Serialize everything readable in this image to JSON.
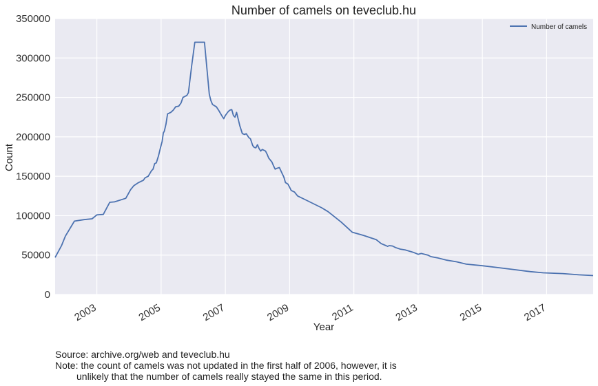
{
  "chart_data": {
    "type": "line",
    "title": "Number of camels on teveclub.hu",
    "xlabel": "Year",
    "ylabel": "Count",
    "ylim": [
      0,
      350000
    ],
    "xlim": [
      2001.7,
      2018.45
    ],
    "yticks": [
      0,
      50000,
      100000,
      150000,
      200000,
      250000,
      300000,
      350000
    ],
    "ytick_labels": [
      "0",
      "50000",
      "100000",
      "150000",
      "200000",
      "250000",
      "300000",
      "350000"
    ],
    "xticks": [
      2003,
      2005,
      2007,
      2009,
      2011,
      2013,
      2015,
      2017
    ],
    "xtick_labels": [
      "2003",
      "2005",
      "2007",
      "2009",
      "2011",
      "2013",
      "2015",
      "2017"
    ],
    "grid": true,
    "legend_position": "top-right",
    "series": [
      {
        "name": "Number of camels",
        "color": "#4c72b0",
        "points": [
          [
            2001.7,
            47000
          ],
          [
            2001.9,
            62000
          ],
          [
            2002.02,
            74000
          ],
          [
            2002.3,
            93000
          ],
          [
            2002.6,
            95000
          ],
          [
            2002.85,
            96000
          ],
          [
            2003.0,
            101000
          ],
          [
            2003.2,
            101500
          ],
          [
            2003.4,
            117000
          ],
          [
            2003.55,
            117500
          ],
          [
            2003.9,
            122000
          ],
          [
            2004.05,
            133000
          ],
          [
            2004.15,
            138000
          ],
          [
            2004.3,
            142000
          ],
          [
            2004.45,
            145000
          ],
          [
            2004.5,
            148000
          ],
          [
            2004.6,
            150000
          ],
          [
            2004.7,
            157000
          ],
          [
            2004.75,
            159000
          ],
          [
            2004.8,
            166000
          ],
          [
            2004.85,
            167000
          ],
          [
            2004.92,
            176000
          ],
          [
            2004.98,
            186000
          ],
          [
            2005.03,
            194000
          ],
          [
            2005.07,
            205000
          ],
          [
            2005.1,
            207000
          ],
          [
            2005.15,
            216000
          ],
          [
            2005.2,
            229000
          ],
          [
            2005.3,
            231000
          ],
          [
            2005.38,
            234000
          ],
          [
            2005.45,
            238000
          ],
          [
            2005.55,
            239000
          ],
          [
            2005.62,
            243000
          ],
          [
            2005.68,
            250000
          ],
          [
            2005.8,
            252500
          ],
          [
            2005.85,
            256000
          ],
          [
            2005.95,
            290000
          ],
          [
            2006.05,
            320000
          ],
          [
            2006.35,
            320000
          ],
          [
            2006.5,
            254000
          ],
          [
            2006.55,
            246000
          ],
          [
            2006.6,
            241000
          ],
          [
            2006.72,
            238000
          ],
          [
            2006.8,
            233000
          ],
          [
            2006.9,
            226000
          ],
          [
            2006.95,
            223000
          ],
          [
            2007.0,
            227000
          ],
          [
            2007.05,
            230000
          ],
          [
            2007.1,
            232500
          ],
          [
            2007.15,
            234000
          ],
          [
            2007.2,
            234500
          ],
          [
            2007.25,
            227000
          ],
          [
            2007.3,
            225000
          ],
          [
            2007.35,
            231000
          ],
          [
            2007.45,
            214000
          ],
          [
            2007.53,
            204000
          ],
          [
            2007.6,
            203000
          ],
          [
            2007.65,
            204000
          ],
          [
            2007.73,
            199000
          ],
          [
            2007.78,
            197500
          ],
          [
            2007.85,
            189000
          ],
          [
            2007.9,
            186500
          ],
          [
            2007.95,
            186000
          ],
          [
            2008.0,
            190000
          ],
          [
            2008.05,
            185000
          ],
          [
            2008.1,
            182000
          ],
          [
            2008.15,
            184000
          ],
          [
            2008.25,
            182000
          ],
          [
            2008.3,
            178000
          ],
          [
            2008.35,
            173000
          ],
          [
            2008.45,
            168000
          ],
          [
            2008.5,
            163000
          ],
          [
            2008.55,
            159000
          ],
          [
            2008.6,
            160000
          ],
          [
            2008.68,
            161000
          ],
          [
            2008.75,
            155000
          ],
          [
            2008.82,
            149000
          ],
          [
            2008.87,
            142000
          ],
          [
            2008.95,
            140000
          ],
          [
            2009.0,
            136000
          ],
          [
            2009.05,
            132000
          ],
          [
            2009.15,
            130000
          ],
          [
            2009.25,
            125000
          ],
          [
            2009.5,
            120000
          ],
          [
            2010.0,
            110000
          ],
          [
            2010.2,
            105000
          ],
          [
            2010.6,
            92000
          ],
          [
            2010.95,
            79000
          ],
          [
            2011.3,
            75000
          ],
          [
            2011.7,
            69500
          ],
          [
            2011.85,
            64500
          ],
          [
            2012.0,
            62000
          ],
          [
            2012.05,
            61000
          ],
          [
            2012.1,
            62000
          ],
          [
            2012.2,
            61500
          ],
          [
            2012.3,
            59500
          ],
          [
            2012.45,
            57500
          ],
          [
            2012.6,
            56500
          ],
          [
            2012.85,
            53500
          ],
          [
            2013.0,
            51000
          ],
          [
            2013.1,
            52000
          ],
          [
            2013.3,
            50000
          ],
          [
            2013.4,
            48000
          ],
          [
            2013.6,
            46500
          ],
          [
            2013.9,
            43500
          ],
          [
            2014.2,
            41500
          ],
          [
            2014.5,
            38500
          ],
          [
            2015.0,
            36500
          ],
          [
            2015.5,
            34000
          ],
          [
            2016.0,
            31500
          ],
          [
            2016.5,
            29000
          ],
          [
            2016.9,
            27500
          ],
          [
            2017.5,
            26500
          ],
          [
            2018.0,
            25000
          ],
          [
            2018.45,
            24000
          ]
        ]
      }
    ]
  },
  "footnotes": {
    "source": "Source: archive.org/web and teveclub.hu",
    "note_line1": "Note: the count of camels was not updated in the first half of 2006, however, it is",
    "note_line2": "unlikely that the number of camels really stayed the same in this period."
  }
}
